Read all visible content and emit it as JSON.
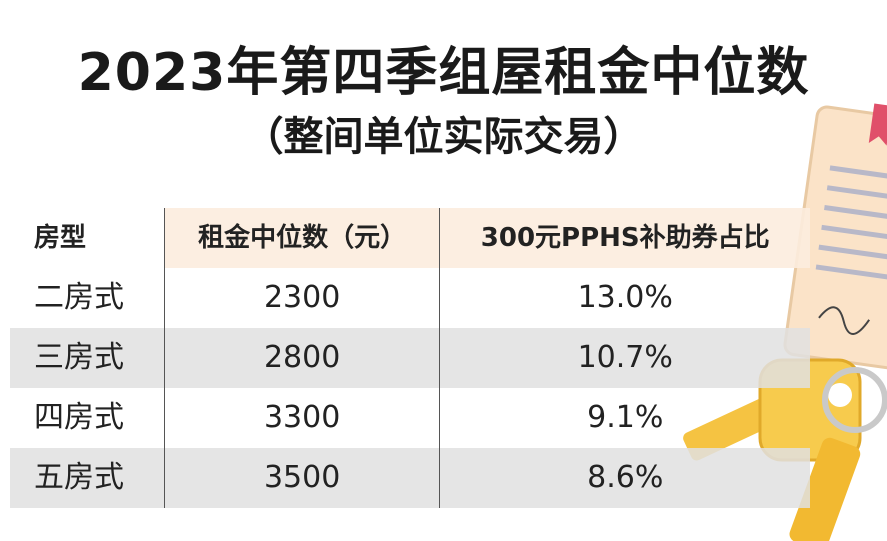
{
  "header": {
    "title": "2023年第四季组屋租金中位数",
    "subtitle": "（整间单位实际交易）"
  },
  "table": {
    "columns": [
      "房型",
      "租金中位数（元）",
      "300元PPHS补助券占比"
    ],
    "rows": [
      [
        "二房式",
        "2300",
        "13.0%"
      ],
      [
        "三房式",
        "2800",
        "10.7%"
      ],
      [
        "四房式",
        "3300",
        "9.1%"
      ],
      [
        "五房式",
        "3500",
        "8.6%"
      ]
    ]
  }
}
